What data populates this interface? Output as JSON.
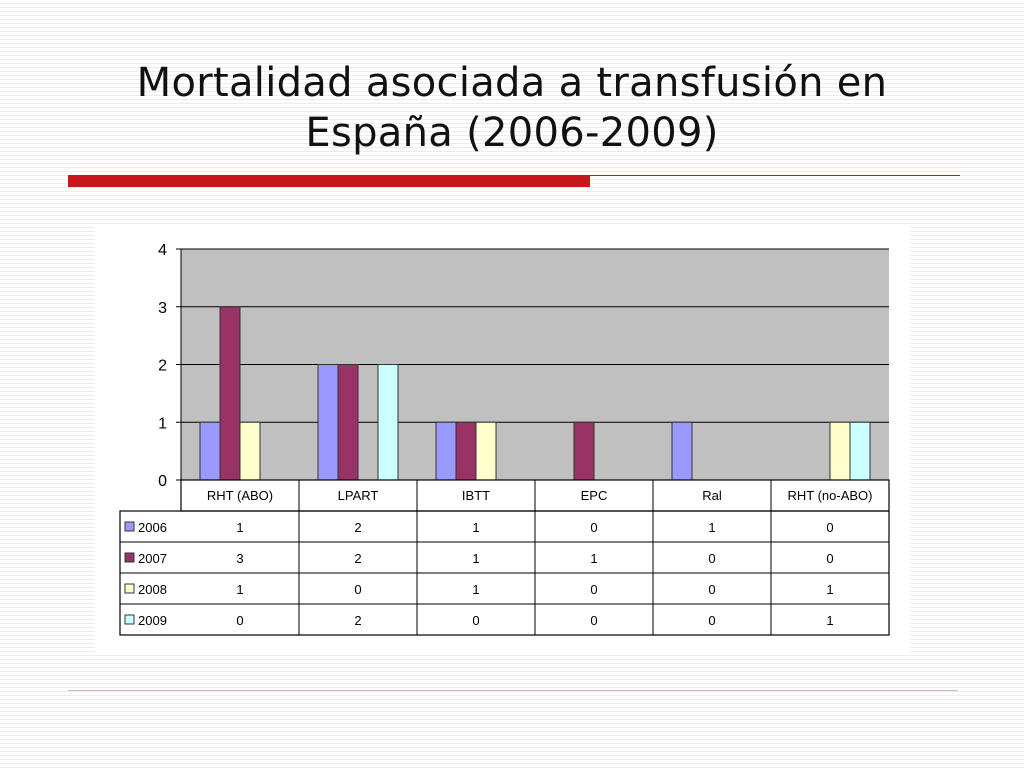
{
  "slide": {
    "title_line1": "Mortalidad asociada a transfusión en",
    "title_line2": "España (2006-2009)",
    "accent_color": "#c8161d"
  },
  "chart_data": {
    "type": "bar",
    "categories": [
      "RHT (ABO)",
      "LPART",
      "IBTT",
      "EPC",
      "Ral",
      "RHT (no-ABO)"
    ],
    "series": [
      {
        "name": "2006",
        "values": [
          1,
          2,
          1,
          0,
          1,
          0
        ],
        "color": "#9999ff"
      },
      {
        "name": "2007",
        "values": [
          3,
          2,
          1,
          1,
          0,
          0
        ],
        "color": "#993366"
      },
      {
        "name": "2008",
        "values": [
          1,
          0,
          1,
          0,
          0,
          1
        ],
        "color": "#ffffcc"
      },
      {
        "name": "2009",
        "values": [
          0,
          2,
          0,
          0,
          0,
          1
        ],
        "color": "#ccffff"
      }
    ],
    "ylim": [
      0,
      4
    ],
    "yticks": [
      0,
      1,
      2,
      3,
      4
    ],
    "grid": true,
    "plot_background": "#c0c0c0",
    "legend": "data-table-below"
  }
}
